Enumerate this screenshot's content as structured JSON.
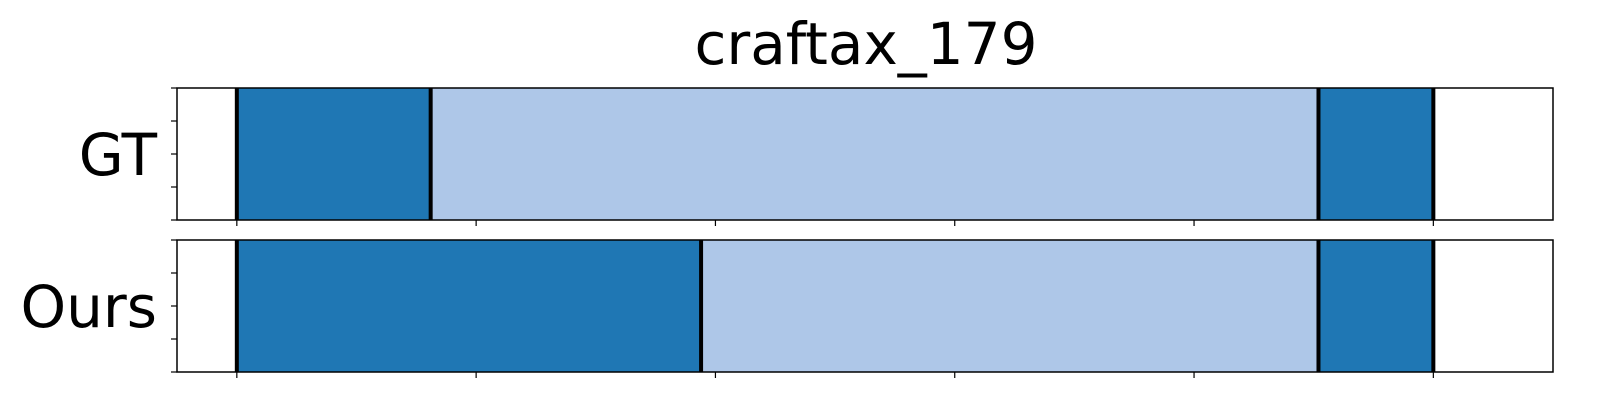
{
  "chart_data": {
    "type": "segmentation-timeline",
    "title": "craftax_179",
    "x_range": [
      -25,
      550
    ],
    "x_ticks": [
      0,
      100,
      200,
      300,
      400,
      500
    ],
    "rows": [
      {
        "label": "GT",
        "segments": [
          {
            "start": 0,
            "end": 81,
            "color": "#1f77b4"
          },
          {
            "start": 81,
            "end": 452,
            "color": "#aec7e8"
          },
          {
            "start": 452,
            "end": 500,
            "color": "#1f77b4"
          }
        ]
      },
      {
        "label": "Ours",
        "segments": [
          {
            "start": 0,
            "end": 194,
            "color": "#1f77b4"
          },
          {
            "start": 194,
            "end": 452,
            "color": "#aec7e8"
          },
          {
            "start": 452,
            "end": 500,
            "color": "#1f77b4"
          }
        ]
      }
    ]
  }
}
